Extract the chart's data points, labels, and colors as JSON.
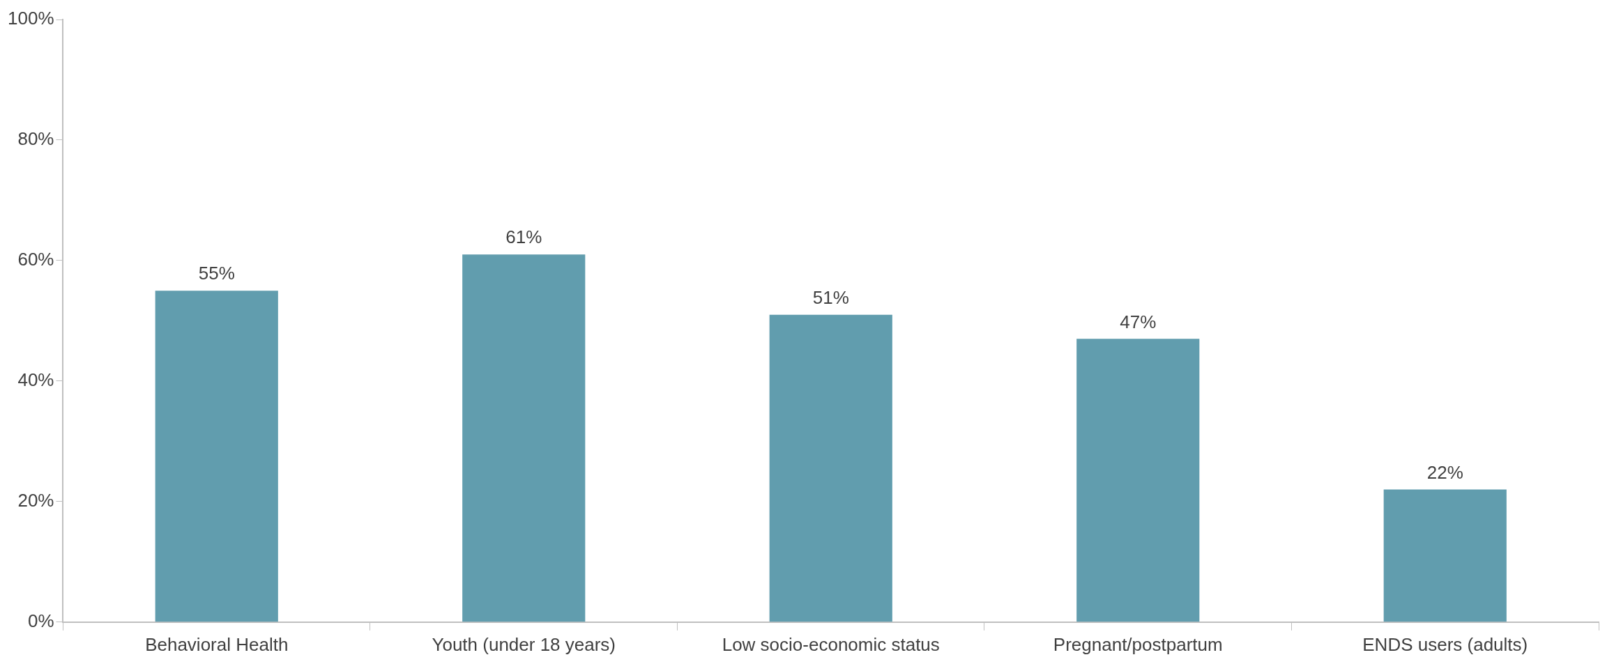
{
  "chart_data": {
    "type": "bar",
    "categories": [
      "Behavioral Health",
      "Youth (under 18 years)",
      "Low socio-economic status",
      "Pregnant/postpartum",
      "ENDS users (adults)"
    ],
    "values": [
      55,
      61,
      51,
      47,
      22
    ],
    "value_labels": [
      "55%",
      "61%",
      "51%",
      "47%",
      "22%"
    ],
    "color": "#619dae",
    "ylim": [
      0,
      100
    ],
    "yticks": [
      {
        "value": 0,
        "label": "0%"
      },
      {
        "value": 20,
        "label": "20%"
      },
      {
        "value": 40,
        "label": "40%"
      },
      {
        "value": 60,
        "label": "60%"
      },
      {
        "value": 80,
        "label": "80%"
      },
      {
        "value": 100,
        "label": "100%"
      }
    ],
    "grid": false,
    "legend": false
  }
}
